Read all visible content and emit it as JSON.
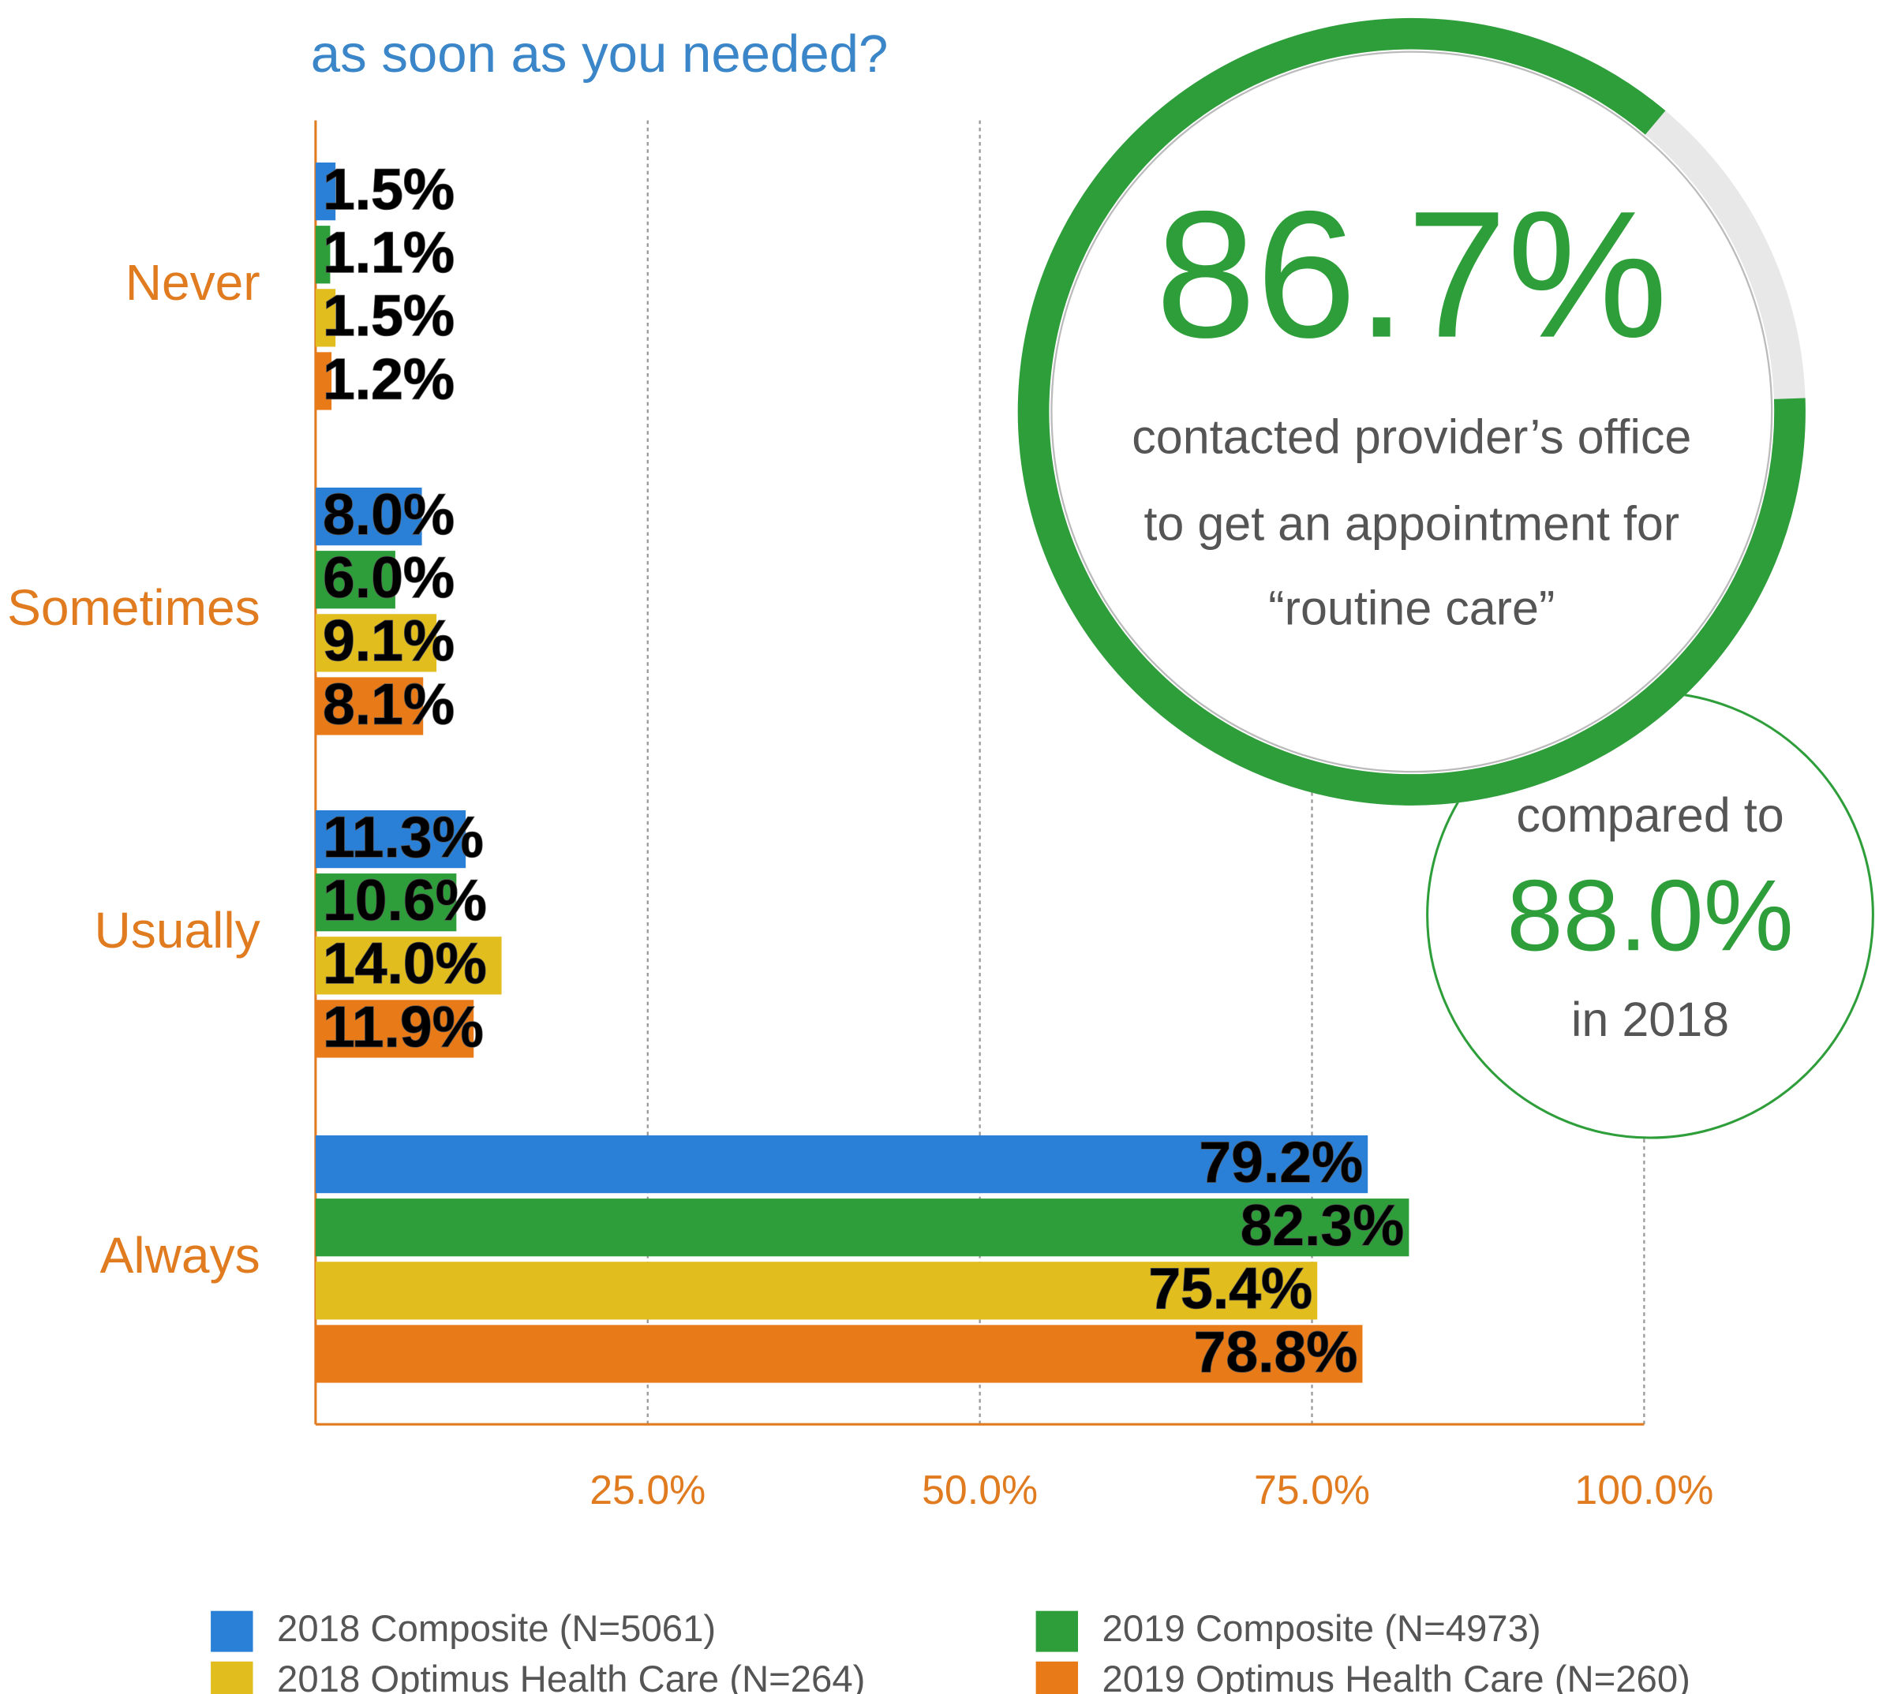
{
  "chart_data": {
    "type": "bar",
    "orientation": "horizontal",
    "title": "as soon as you needed?",
    "categories": [
      "Never",
      "Sometimes",
      "Usually",
      "Always"
    ],
    "series": [
      {
        "name": "2018 Composite (N=5061)",
        "color": "#2a7fd6",
        "values": [
          1.5,
          8.0,
          11.3,
          79.2
        ],
        "value_labels": [
          "1.5%",
          "8.0%",
          "11.3%",
          "79.2%"
        ]
      },
      {
        "name": "2019 Composite (N=4973)",
        "color": "#2e9e3a",
        "values": [
          1.1,
          6.0,
          10.6,
          82.3
        ],
        "value_labels": [
          "1.1%",
          "6.0%",
          "10.6%",
          "82.3%"
        ]
      },
      {
        "name": "2018 Optimus Health Care (N=264)",
        "color": "#e2bd1e",
        "values": [
          1.5,
          9.1,
          14.0,
          75.4
        ],
        "value_labels": [
          "1.5%",
          "9.1%",
          "14.0%",
          "75.4%"
        ]
      },
      {
        "name": "2019 Optimus Health Care (N=260)",
        "color": "#e87a18",
        "values": [
          1.2,
          8.1,
          11.9,
          78.8
        ],
        "value_labels": [
          "1.2%",
          "8.1%",
          "11.9%",
          "78.8%"
        ]
      }
    ],
    "xlim": [
      0,
      100
    ],
    "xticks": [
      {
        "value": 25,
        "label": "25.0%"
      },
      {
        "value": 50,
        "label": "50.0%"
      },
      {
        "value": 75,
        "label": "75.0%"
      },
      {
        "value": 100,
        "label": "100.0%"
      }
    ],
    "grid": true,
    "gauge": {
      "value": 86.7,
      "label": "86.7%",
      "color": "#2e9e3a"
    },
    "annotations": [
      "contacted provider’s office",
      "to get an appointment for",
      "“routine care”",
      "compared to",
      "88.0%",
      "in 2018"
    ]
  }
}
